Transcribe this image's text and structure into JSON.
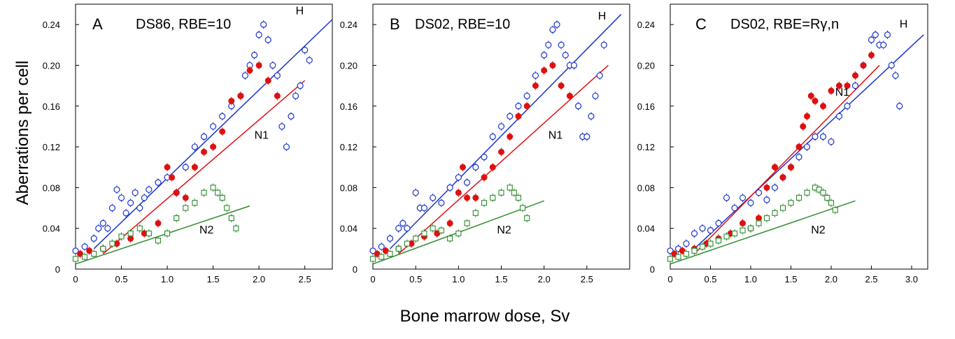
{
  "figure": {
    "ylabel": "Aberrations per cell",
    "xlabel": "Bone marrow dose, Sv"
  },
  "colors": {
    "H": "#1a33cc",
    "N1": "#e01010",
    "N2": "#2e8b2e"
  },
  "chart_data": [
    {
      "type": "scatter",
      "letter": "A",
      "title": "DS86, RBE=10",
      "xlim": [
        0,
        2.8
      ],
      "ylim": [
        0,
        0.26
      ],
      "xticks": [
        "0",
        "0.5",
        "1.0",
        "1.5",
        "2.0",
        "2.5"
      ],
      "yticks": [
        "0",
        "0.04",
        "0.08",
        "0.12",
        "0.16",
        "0.20",
        "0.24"
      ],
      "series": [
        {
          "name": "H",
          "marker": "open-circle",
          "color": "#1a33cc",
          "x": [
            0,
            0.1,
            0.2,
            0.25,
            0.3,
            0.35,
            0.4,
            0.45,
            0.5,
            0.55,
            0.6,
            0.65,
            0.7,
            0.75,
            0.8,
            0.9,
            1.0,
            1.1,
            1.2,
            1.3,
            1.4,
            1.5,
            1.6,
            1.7,
            1.8,
            1.85,
            1.9,
            1.95,
            2.0,
            2.05,
            2.1,
            2.15,
            2.2,
            2.25,
            2.3,
            2.35,
            2.4,
            2.45,
            2.5,
            2.55
          ],
          "y": [
            0.018,
            0.022,
            0.03,
            0.04,
            0.045,
            0.04,
            0.06,
            0.078,
            0.07,
            0.055,
            0.065,
            0.075,
            0.06,
            0.07,
            0.078,
            0.085,
            0.09,
            0.075,
            0.1,
            0.12,
            0.13,
            0.14,
            0.15,
            0.16,
            0.17,
            0.19,
            0.2,
            0.21,
            0.23,
            0.24,
            0.225,
            0.2,
            0.19,
            0.14,
            0.12,
            0.15,
            0.17,
            0.18,
            0.215,
            0.205
          ]
        },
        {
          "name": "N1",
          "marker": "filled-circle",
          "color": "#e01010",
          "x": [
            0.05,
            0.15,
            0.3,
            0.45,
            0.6,
            0.75,
            0.9,
            1.0,
            1.05,
            1.1,
            1.2,
            1.3,
            1.4,
            1.5,
            1.6,
            1.7,
            1.8,
            1.9,
            2.0,
            2.1,
            2.2
          ],
          "y": [
            0.015,
            0.018,
            0.02,
            0.025,
            0.03,
            0.035,
            0.045,
            0.1,
            0.09,
            0.075,
            0.07,
            0.1,
            0.115,
            0.12,
            0.135,
            0.165,
            0.17,
            0.195,
            0.2,
            0.185,
            0.17
          ]
        },
        {
          "name": "N2",
          "marker": "open-square",
          "color": "#2e8b2e",
          "x": [
            0,
            0.1,
            0.2,
            0.3,
            0.4,
            0.5,
            0.6,
            0.7,
            0.8,
            0.9,
            1.0,
            1.1,
            1.2,
            1.3,
            1.4,
            1.5,
            1.55,
            1.6,
            1.65,
            1.7,
            1.75
          ],
          "y": [
            0.01,
            0.012,
            0.015,
            0.02,
            0.025,
            0.032,
            0.035,
            0.04,
            0.035,
            0.028,
            0.035,
            0.05,
            0.06,
            0.065,
            0.075,
            0.08,
            0.075,
            0.07,
            0.06,
            0.05,
            0.04
          ]
        }
      ],
      "fits": [
        {
          "name": "H",
          "x": [
            0.2,
            2.8
          ],
          "y": [
            0.02,
            0.245
          ]
        },
        {
          "name": "N1",
          "x": [
            0.3,
            2.5
          ],
          "y": [
            0.015,
            0.185
          ]
        },
        {
          "name": "N2",
          "x": [
            0.0,
            1.9
          ],
          "y": [
            0.005,
            0.062
          ]
        }
      ],
      "labels": [
        {
          "text": "H",
          "x": 2.4,
          "y": 0.25
        },
        {
          "text": "N1",
          "x": 1.95,
          "y": 0.128
        },
        {
          "text": "N2",
          "x": 1.35,
          "y": 0.035
        }
      ]
    },
    {
      "type": "scatter",
      "letter": "B",
      "title": "DS02, RBE=10",
      "xlim": [
        0,
        3.0
      ],
      "ylim": [
        0,
        0.26
      ],
      "xticks": [
        "0",
        "0.5",
        "1.0",
        "1.5",
        "2.0",
        "2.5"
      ],
      "yticks": [
        "0",
        "0.04",
        "0.08",
        "0.12",
        "0.16",
        "0.20",
        "0.24"
      ],
      "series": [
        {
          "name": "H",
          "marker": "open-circle",
          "color": "#1a33cc",
          "x": [
            0,
            0.1,
            0.2,
            0.3,
            0.35,
            0.4,
            0.5,
            0.55,
            0.6,
            0.7,
            0.8,
            0.9,
            1.0,
            1.1,
            1.2,
            1.3,
            1.4,
            1.5,
            1.6,
            1.7,
            1.8,
            1.9,
            2.0,
            2.05,
            2.1,
            2.15,
            2.2,
            2.25,
            2.3,
            2.35,
            2.4,
            2.45,
            2.5,
            2.55,
            2.6,
            2.65,
            2.7
          ],
          "y": [
            0.018,
            0.022,
            0.03,
            0.04,
            0.045,
            0.04,
            0.075,
            0.06,
            0.06,
            0.07,
            0.065,
            0.08,
            0.09,
            0.085,
            0.1,
            0.11,
            0.13,
            0.14,
            0.15,
            0.16,
            0.17,
            0.19,
            0.21,
            0.22,
            0.235,
            0.24,
            0.22,
            0.21,
            0.2,
            0.2,
            0.16,
            0.13,
            0.13,
            0.15,
            0.17,
            0.19,
            0.22
          ]
        },
        {
          "name": "N1",
          "marker": "filled-circle",
          "color": "#e01010",
          "x": [
            0.05,
            0.15,
            0.3,
            0.45,
            0.6,
            0.75,
            0.9,
            1.0,
            1.05,
            1.1,
            1.2,
            1.3,
            1.4,
            1.5,
            1.6,
            1.7,
            1.8,
            1.9,
            2.0,
            2.1,
            2.2,
            2.3
          ],
          "y": [
            0.015,
            0.018,
            0.02,
            0.025,
            0.032,
            0.035,
            0.045,
            0.075,
            0.1,
            0.07,
            0.07,
            0.09,
            0.1,
            0.115,
            0.13,
            0.15,
            0.16,
            0.18,
            0.195,
            0.2,
            0.18,
            0.17
          ]
        },
        {
          "name": "N2",
          "marker": "open-square",
          "color": "#2e8b2e",
          "x": [
            0,
            0.1,
            0.2,
            0.3,
            0.4,
            0.5,
            0.6,
            0.7,
            0.8,
            0.9,
            1.0,
            1.1,
            1.2,
            1.3,
            1.4,
            1.5,
            1.6,
            1.65,
            1.7,
            1.75,
            1.8
          ],
          "y": [
            0.01,
            0.012,
            0.015,
            0.02,
            0.025,
            0.03,
            0.035,
            0.04,
            0.038,
            0.03,
            0.035,
            0.045,
            0.055,
            0.065,
            0.07,
            0.075,
            0.08,
            0.075,
            0.07,
            0.06,
            0.05
          ]
        }
      ],
      "fits": [
        {
          "name": "H",
          "x": [
            0.2,
            2.9
          ],
          "y": [
            0.02,
            0.25
          ]
        },
        {
          "name": "N1",
          "x": [
            0.3,
            2.75
          ],
          "y": [
            0.015,
            0.2
          ]
        },
        {
          "name": "N2",
          "x": [
            0.0,
            2.0
          ],
          "y": [
            0.005,
            0.067
          ]
        }
      ],
      "labels": [
        {
          "text": "H",
          "x": 2.63,
          "y": 0.245
        },
        {
          "text": "N1",
          "x": 2.05,
          "y": 0.128
        },
        {
          "text": "N2",
          "x": 1.45,
          "y": 0.035
        }
      ]
    },
    {
      "type": "scatter",
      "letter": "C",
      "title": "DS02, RBE=Rγ,n",
      "xlim": [
        0,
        3.2
      ],
      "ylim": [
        0,
        0.26
      ],
      "xticks": [
        "0",
        "0.5",
        "1.0",
        "1.5",
        "2.0",
        "2.5",
        "3.0"
      ],
      "yticks": [
        "0",
        "0.04",
        "0.08",
        "0.12",
        "0.16",
        "0.20",
        "0.24"
      ],
      "series": [
        {
          "name": "H",
          "marker": "open-circle",
          "color": "#1a33cc",
          "x": [
            0,
            0.1,
            0.2,
            0.3,
            0.4,
            0.5,
            0.6,
            0.7,
            0.8,
            0.9,
            1.0,
            1.1,
            1.2,
            1.3,
            1.4,
            1.5,
            1.6,
            1.7,
            1.8,
            1.9,
            2.0,
            2.1,
            2.2,
            2.3,
            2.4,
            2.5,
            2.55,
            2.6,
            2.65,
            2.7,
            2.75,
            2.8,
            2.85
          ],
          "y": [
            0.018,
            0.02,
            0.025,
            0.035,
            0.04,
            0.038,
            0.045,
            0.07,
            0.06,
            0.07,
            0.065,
            0.075,
            0.068,
            0.08,
            0.09,
            0.1,
            0.11,
            0.12,
            0.13,
            0.13,
            0.125,
            0.15,
            0.16,
            0.18,
            0.2,
            0.225,
            0.23,
            0.22,
            0.22,
            0.23,
            0.2,
            0.19,
            0.16
          ]
        },
        {
          "name": "N1",
          "marker": "filled-circle",
          "color": "#e01010",
          "x": [
            0.05,
            0.15,
            0.3,
            0.45,
            0.6,
            0.75,
            0.9,
            1.0,
            1.1,
            1.2,
            1.3,
            1.4,
            1.5,
            1.6,
            1.65,
            1.7,
            1.75,
            1.8,
            1.9,
            2.0,
            2.1,
            2.2,
            2.3,
            2.4,
            2.5
          ],
          "y": [
            0.015,
            0.018,
            0.02,
            0.025,
            0.03,
            0.035,
            0.045,
            0.04,
            0.05,
            0.08,
            0.1,
            0.09,
            0.1,
            0.12,
            0.14,
            0.15,
            0.17,
            0.165,
            0.16,
            0.175,
            0.18,
            0.18,
            0.19,
            0.2,
            0.21
          ]
        },
        {
          "name": "N2",
          "marker": "open-square",
          "color": "#2e8b2e",
          "x": [
            0,
            0.1,
            0.2,
            0.3,
            0.4,
            0.5,
            0.6,
            0.7,
            0.8,
            0.9,
            1.0,
            1.1,
            1.2,
            1.3,
            1.4,
            1.5,
            1.6,
            1.7,
            1.8,
            1.85,
            1.9,
            1.95,
            2.0,
            2.05
          ],
          "y": [
            0.01,
            0.012,
            0.015,
            0.018,
            0.022,
            0.025,
            0.028,
            0.032,
            0.035,
            0.038,
            0.04,
            0.045,
            0.05,
            0.055,
            0.06,
            0.065,
            0.07,
            0.075,
            0.08,
            0.078,
            0.075,
            0.07,
            0.065,
            0.058
          ]
        }
      ],
      "fits": [
        {
          "name": "H",
          "x": [
            0.3,
            3.15
          ],
          "y": [
            0.02,
            0.23
          ]
        },
        {
          "name": "N1",
          "x": [
            0.3,
            2.6
          ],
          "y": [
            0.015,
            0.2
          ]
        },
        {
          "name": "N2",
          "x": [
            0.0,
            2.3
          ],
          "y": [
            0.005,
            0.067
          ]
        }
      ],
      "labels": [
        {
          "text": "H",
          "x": 2.85,
          "y": 0.237
        },
        {
          "text": "N1",
          "x": 2.05,
          "y": 0.17
        },
        {
          "text": "N2",
          "x": 1.75,
          "y": 0.035
        }
      ]
    }
  ]
}
